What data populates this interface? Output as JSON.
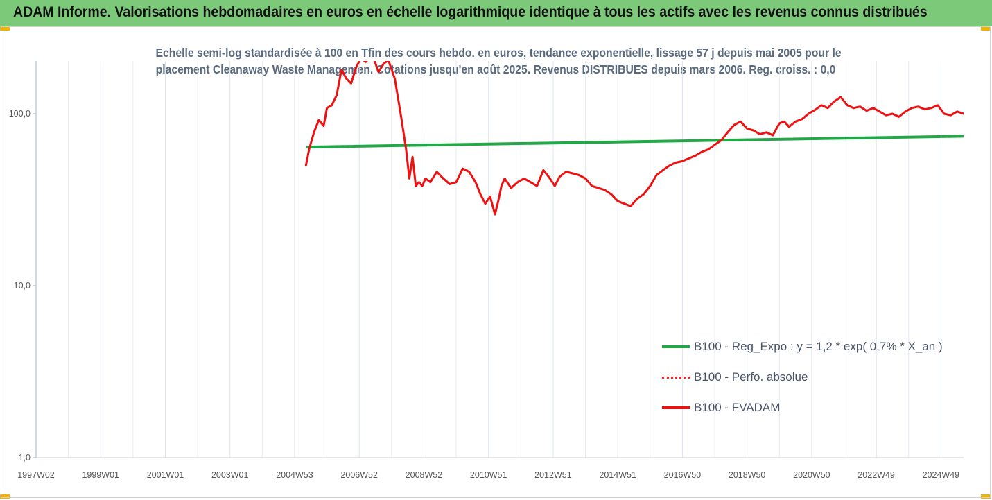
{
  "header": {
    "title": "ADAM Informe. Valorisations hebdomadaires en euros en échelle logarithmique identique à tous les actifs avec les revenus connus distribués"
  },
  "chart_data": {
    "type": "line",
    "title_lines": [
      "Echelle semi-log standardisée à 100 en Tfin des cours hebdo. en euros, tendance exponentielle, lissage 57 j depuis mai 2005 pour le",
      "placement Cleanaway Waste Managemen. Cotations jusqu'en août 2025. Revenus DISTRIBUES depuis mars 2006. Reg. croiss. : 0,0"
    ],
    "y_scale": "log",
    "ylim": [
      1,
      200
    ],
    "y_ticks": [
      "1,0",
      "10,0",
      "100,0"
    ],
    "y_tick_values": [
      1,
      10,
      100
    ],
    "xlim": [
      1997.0,
      2025.7
    ],
    "x_ticks": [
      "1997W02",
      "1999W01",
      "2001W01",
      "2003W01",
      "2004W53",
      "2006W52",
      "2008W52",
      "2010W51",
      "2012W51",
      "2014W51",
      "2016W50",
      "2018W50",
      "2020W50",
      "2022W49",
      "2024W49"
    ],
    "x_tick_values": [
      1997.0,
      1999.0,
      2001.0,
      2003.0,
      2005.0,
      2007.0,
      2009.0,
      2011.0,
      2013.0,
      2015.0,
      2017.0,
      2019.0,
      2021.0,
      2023.0,
      2025.0
    ],
    "grid": "vertical",
    "legend_position": "bottom-right",
    "series": [
      {
        "name": "B100 - Reg_Expo : y = 1,2 * exp( 0,7% *  X_an )",
        "color": "#22a846",
        "style": "solid",
        "x": [
          2005.4,
          2025.7
        ],
        "y": [
          64,
          74
        ]
      },
      {
        "name": "B100 - Perfo. absolue",
        "color": "#ff2020",
        "style": "dotted",
        "x": [],
        "y": []
      },
      {
        "name": "B100 - FVADAM",
        "color": "#ee1111",
        "style": "solid",
        "x": [
          2005.35,
          2005.45,
          2005.6,
          2005.75,
          2005.9,
          2006.0,
          2006.15,
          2006.3,
          2006.45,
          2006.6,
          2006.75,
          2006.9,
          2007.05,
          2007.2,
          2007.4,
          2007.6,
          2007.75,
          2007.9,
          2008.1,
          2008.3,
          2008.45,
          2008.55,
          2008.65,
          2008.75,
          2008.85,
          2008.95,
          2009.05,
          2009.2,
          2009.4,
          2009.6,
          2009.8,
          2010.0,
          2010.2,
          2010.4,
          2010.6,
          2010.75,
          2010.9,
          2011.05,
          2011.2,
          2011.3,
          2011.4,
          2011.5,
          2011.7,
          2011.9,
          2012.1,
          2012.3,
          2012.5,
          2012.7,
          2012.9,
          2013.05,
          2013.2,
          2013.4,
          2013.6,
          2013.8,
          2014.0,
          2014.2,
          2014.4,
          2014.6,
          2014.8,
          2015.0,
          2015.2,
          2015.4,
          2015.6,
          2015.8,
          2016.0,
          2016.2,
          2016.4,
          2016.6,
          2016.8,
          2017.0,
          2017.2,
          2017.4,
          2017.6,
          2017.8,
          2018.0,
          2018.2,
          2018.4,
          2018.6,
          2018.8,
          2019.0,
          2019.2,
          2019.4,
          2019.6,
          2019.8,
          2020.0,
          2020.15,
          2020.3,
          2020.5,
          2020.7,
          2020.9,
          2021.1,
          2021.3,
          2021.5,
          2021.7,
          2021.9,
          2022.1,
          2022.3,
          2022.5,
          2022.7,
          2022.9,
          2023.1,
          2023.3,
          2023.5,
          2023.7,
          2023.9,
          2024.1,
          2024.3,
          2024.5,
          2024.7,
          2024.9,
          2025.1,
          2025.3,
          2025.5,
          2025.7
        ],
        "y": [
          50,
          62,
          78,
          92,
          85,
          108,
          112,
          128,
          180,
          160,
          150,
          185,
          210,
          200,
          220,
          175,
          195,
          205,
          160,
          95,
          62,
          42,
          56,
          38,
          40,
          38,
          42,
          40,
          46,
          42,
          39,
          40,
          48,
          46,
          40,
          34,
          30,
          33,
          26,
          31,
          38,
          42,
          37,
          40,
          42,
          40,
          38,
          47,
          42,
          38,
          43,
          46,
          45,
          44,
          42,
          38,
          37,
          36,
          34,
          31,
          30,
          29,
          32,
          34,
          38,
          44,
          47,
          50,
          52,
          53,
          55,
          57,
          60,
          62,
          66,
          70,
          78,
          86,
          90,
          82,
          80,
          76,
          78,
          75,
          88,
          90,
          84,
          90,
          93,
          100,
          105,
          112,
          108,
          118,
          125,
          112,
          108,
          110,
          104,
          108,
          103,
          98,
          100,
          96,
          103,
          108,
          110,
          106,
          108,
          112,
          100,
          98,
          103,
          100
        ]
      }
    ]
  }
}
